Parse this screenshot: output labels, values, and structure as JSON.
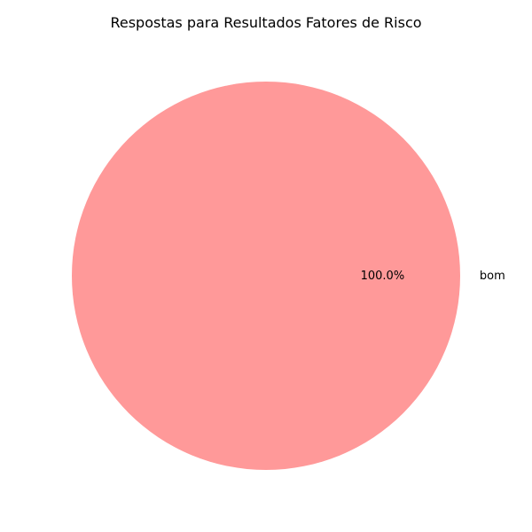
{
  "chart_data": {
    "type": "pie",
    "title": "Respostas para Resultados Fatores de Risco",
    "categories": [
      "bom"
    ],
    "values": [
      100.0
    ],
    "value_labels": [
      "100.0%"
    ],
    "colors": [
      "#ff9999"
    ]
  }
}
